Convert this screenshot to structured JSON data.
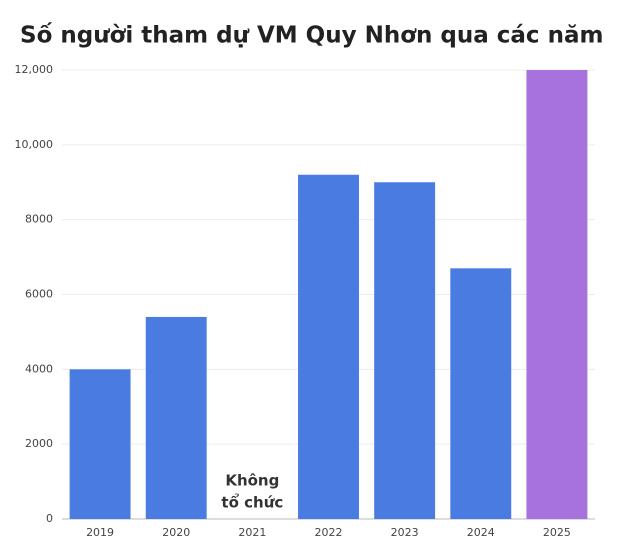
{
  "chart_data": {
    "type": "bar",
    "title": "Số người tham dự VM Quy Nhơn qua các năm",
    "categories": [
      "2019",
      "2020",
      "2021",
      "2022",
      "2023",
      "2024",
      "2025"
    ],
    "values": [
      4000,
      5400,
      null,
      9200,
      9000,
      6700,
      12000
    ],
    "colors": [
      "#4a7be0",
      "#4a7be0",
      "#4a7be0",
      "#4a7be0",
      "#4a7be0",
      "#4a7be0",
      "#a872de"
    ],
    "annotation": [
      "Không",
      "tổ chức"
    ],
    "ylim": [
      0,
      12000
    ],
    "yticks": [
      0,
      2000,
      4000,
      6000,
      8000,
      {
        "value": 10000,
        "label": "10,000"
      },
      {
        "value": 12000,
        "label": "12,000"
      }
    ],
    "grid": true
  }
}
